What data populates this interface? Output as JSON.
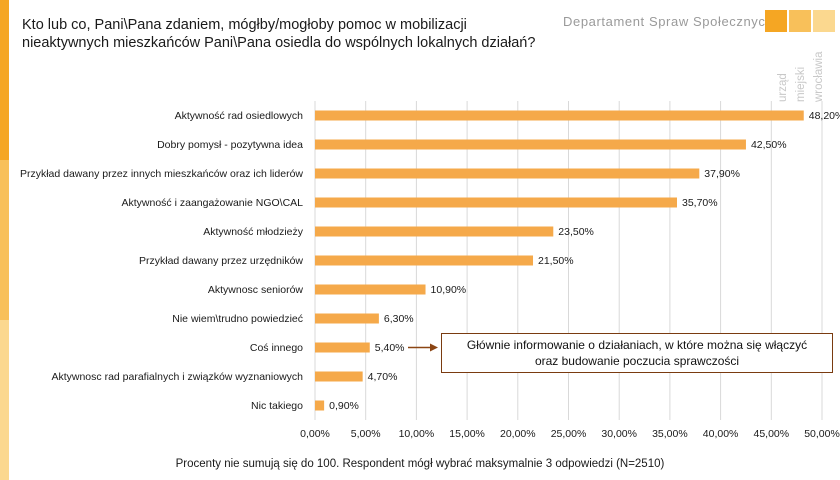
{
  "header": {
    "title_line1": "Kto lub co, Pani\\Pana zdaniem, mógłby/mogłoby pomoc w mobilizacji",
    "title_line2": "nieaktywnych mieszkańców Pani\\Pana osiedla do wspólnych lokalnych działań?",
    "department": "Departament Spraw Społecznych",
    "logo_line1": "urząd",
    "logo_line2": "miejski",
    "logo_line3": "wrocławia"
  },
  "annotation": {
    "line1": "Głównie informowanie o działaniach, w które można się włączyć",
    "line2": "oraz budowanie poczucia sprawczości"
  },
  "footnote": "Procenty nie sumują się do 100. Respondent mógł wybrać maksymalnie 3 odpowiedzi (N=2510)",
  "colors": {
    "bar": "#f5a94a",
    "accent": "#f5a623",
    "arrow": "#8b4513",
    "grid": "#d9d9d9"
  },
  "chart_data": {
    "type": "bar",
    "orientation": "horizontal",
    "categories": [
      "Aktywność rad osiedlowych",
      "Dobry pomysł - pozytywna idea",
      "Przykład dawany przez innych mieszkańców oraz ich liderów",
      "Aktywność i zaangażowanie NGO\\CAL",
      "Aktywność młodzieży",
      "Przykład dawany przez urzędników",
      "Aktywnosc seniorów",
      "Nie wiem\\trudno powiedzieć",
      "Coś innego",
      "Aktywnosc rad parafialnych i związków wyznaniowych",
      "Nic takiego"
    ],
    "values": [
      48.2,
      42.5,
      37.9,
      35.7,
      23.5,
      21.5,
      10.9,
      6.3,
      5.4,
      4.7,
      0.9
    ],
    "value_labels": [
      "48,20%",
      "42,50%",
      "37,90%",
      "35,70%",
      "23,50%",
      "21,50%",
      "10,90%",
      "6,30%",
      "5,40%",
      "4,70%",
      "0,90%"
    ],
    "xlim": [
      0,
      50
    ],
    "x_ticks": [
      0,
      5,
      10,
      15,
      20,
      25,
      30,
      35,
      40,
      45,
      50
    ],
    "x_tick_labels": [
      "0,00%",
      "5,00%",
      "10,00%",
      "15,00%",
      "20,00%",
      "25,00%",
      "30,00%",
      "35,00%",
      "40,00%",
      "45,00%",
      "50,00%"
    ],
    "grid": "vertical",
    "legend": "none"
  }
}
